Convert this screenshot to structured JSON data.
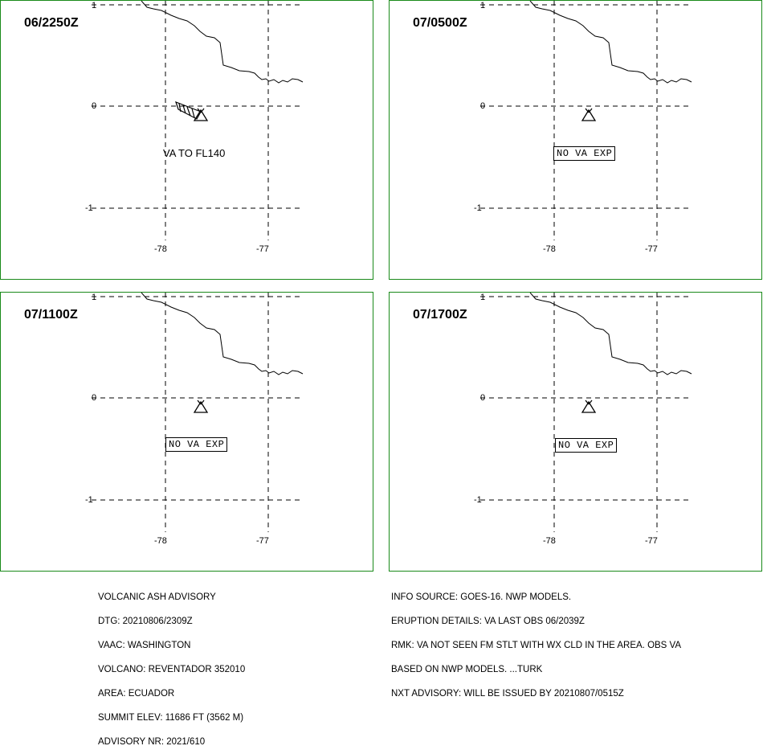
{
  "panels": [
    {
      "time": "06/2250Z",
      "note": "VA TO FL140",
      "note_boxed": false,
      "ash_cloud": true
    },
    {
      "time": "07/0500Z",
      "note": "NO VA EXP",
      "note_boxed": true,
      "ash_cloud": false
    },
    {
      "time": "07/1100Z",
      "note": "NO VA EXP",
      "note_boxed": true,
      "ash_cloud": false
    },
    {
      "time": "07/1700Z",
      "note": "NO VA EXP",
      "note_boxed": true,
      "ash_cloud": false
    }
  ],
  "axes": {
    "lat_labels": [
      "1",
      "0",
      "-1"
    ],
    "lon_labels": [
      "-78",
      "-77"
    ]
  },
  "advisory_left": [
    "VOLCANIC ASH ADVISORY",
    "DTG: 20210806/2309Z",
    "VAAC: WASHINGTON",
    "VOLCANO: REVENTADOR 352010",
    "AREA: ECUADOR",
    "SUMMIT ELEV: 11686 FT (3562 M)",
    "ADVISORY NR: 2021/610"
  ],
  "advisory_right": [
    "INFO SOURCE: GOES-16. NWP MODELS.",
    "ERUPTION DETAILS: VA LAST OBS 06/2039Z",
    "RMK: VA NOT SEEN FM STLT WITH WX CLD IN THE AREA. OBS VA",
    "BASED ON NWP MODELS. ...TURK",
    "NXT ADVISORY: WILL BE ISSUED BY 20210807/0515Z"
  ],
  "colors": {
    "panel_border": "#1a8a1a",
    "lines": "#000000"
  }
}
